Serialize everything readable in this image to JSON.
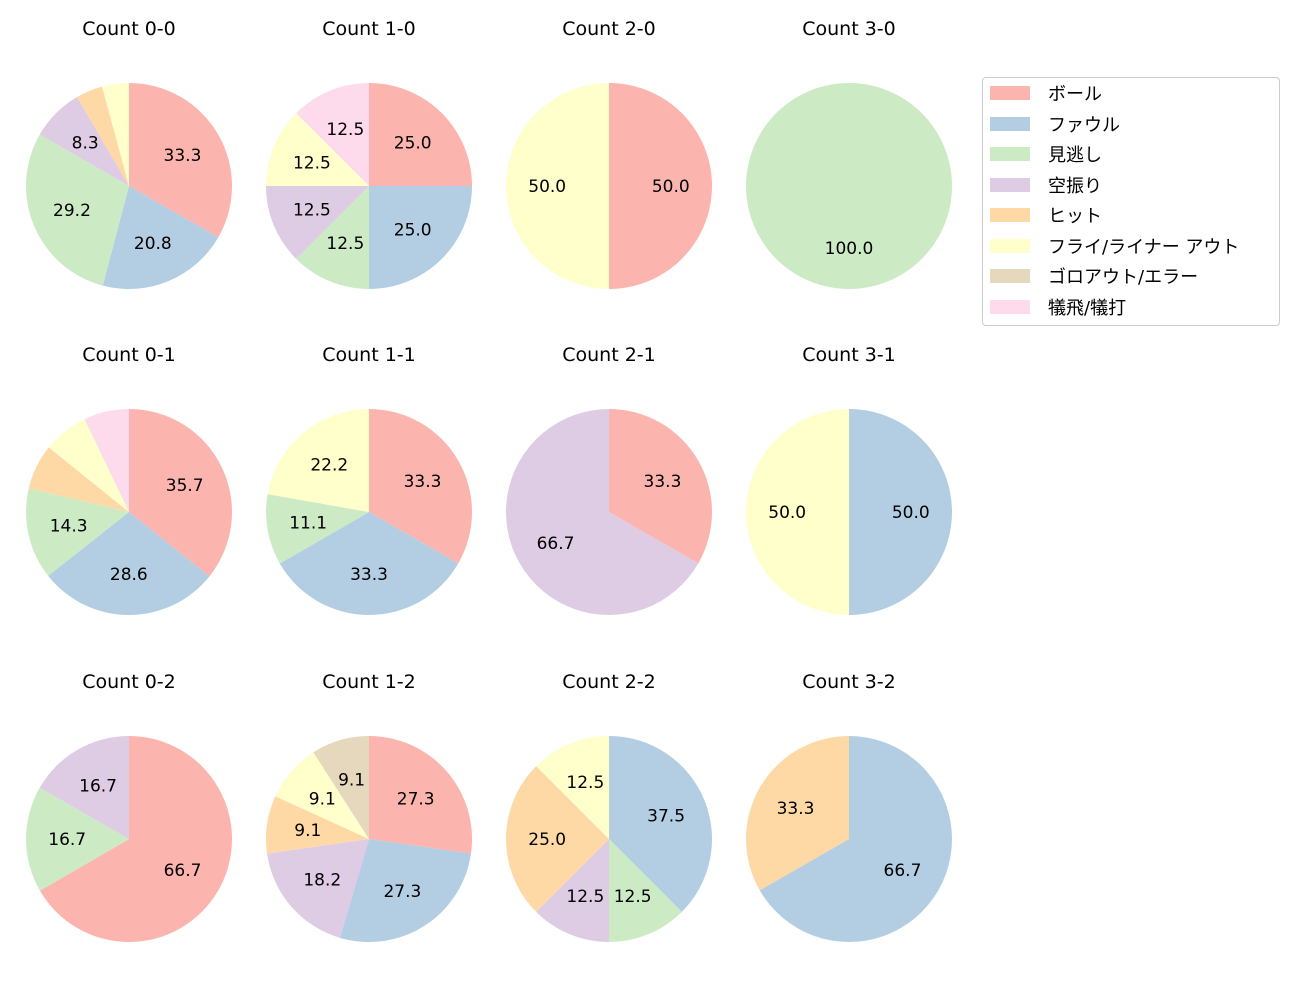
{
  "chart_data": {
    "type": "pie",
    "legend": {
      "placement": "right",
      "entries": [
        "ボール",
        "ファウル",
        "見逃し",
        "空振り",
        "ヒット",
        "フライ/ライナー アウト",
        "ゴロアウト/エラー",
        "犠飛/犠打"
      ]
    },
    "colors": [
      "#fbb4ae",
      "#b3cde3",
      "#ccebc5",
      "#decbe4",
      "#fed9a6",
      "#ffffcc",
      "#e5d8bd",
      "#fddaec"
    ],
    "start_angle_deg": 90,
    "direction": "clockwise",
    "charts": [
      {
        "title": "Count 0-0",
        "values": [
          33.3,
          20.8,
          29.2,
          8.3,
          4.2,
          4.2,
          0,
          0
        ]
      },
      {
        "title": "Count 1-0",
        "values": [
          25.0,
          25.0,
          12.5,
          12.5,
          0,
          12.5,
          0,
          12.5
        ]
      },
      {
        "title": "Count 2-0",
        "values": [
          50.0,
          0,
          0,
          0,
          0,
          50.0,
          0,
          0
        ]
      },
      {
        "title": "Count 3-0",
        "values": [
          0,
          0,
          100.0,
          0,
          0,
          0,
          0,
          0
        ]
      },
      {
        "title": "Count 0-1",
        "values": [
          35.7,
          28.6,
          14.3,
          0,
          7.1,
          7.1,
          0,
          7.1
        ]
      },
      {
        "title": "Count 1-1",
        "values": [
          33.3,
          33.3,
          11.1,
          0,
          0,
          22.2,
          0,
          0
        ]
      },
      {
        "title": "Count 2-1",
        "values": [
          33.3,
          0,
          0,
          66.7,
          0,
          0,
          0,
          0
        ]
      },
      {
        "title": "Count 3-1",
        "values": [
          0,
          50.0,
          0,
          0,
          0,
          50.0,
          0,
          0
        ]
      },
      {
        "title": "Count 0-2",
        "values": [
          66.7,
          0,
          16.7,
          16.7,
          0,
          0,
          0,
          0
        ]
      },
      {
        "title": "Count 1-2",
        "values": [
          27.3,
          27.3,
          0,
          18.2,
          9.1,
          9.1,
          9.1,
          0
        ]
      },
      {
        "title": "Count 2-2",
        "values": [
          0,
          37.5,
          12.5,
          12.5,
          25.0,
          12.5,
          0,
          0
        ]
      },
      {
        "title": "Count 3-2",
        "values": [
          0,
          66.7,
          0,
          0,
          33.3,
          0,
          0,
          0
        ]
      }
    ]
  }
}
